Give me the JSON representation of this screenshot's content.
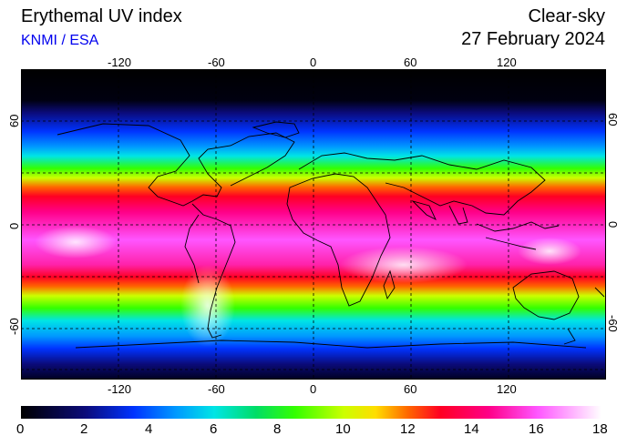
{
  "header": {
    "title": "Erythemal UV index",
    "source": "KNMI / ESA",
    "condition": "Clear-sky",
    "date": "27 February 2024"
  },
  "map": {
    "lon_ticks": [
      "-120",
      "-60",
      "0",
      "60",
      "120"
    ],
    "lat_ticks_left": [
      "60",
      "0",
      "-60"
    ],
    "lat_ticks_right": [
      "60",
      "0",
      "-60"
    ],
    "lon_range": [
      -180,
      180
    ],
    "lat_range": [
      -90,
      90
    ],
    "grid": true,
    "colormap_stops": [
      {
        "value": 0,
        "color": "#000000"
      },
      {
        "value": 2,
        "color": "#0b0b7a"
      },
      {
        "value": 3.5,
        "color": "#0033ff"
      },
      {
        "value": 4.8,
        "color": "#0099ff"
      },
      {
        "value": 6,
        "color": "#00e5e5"
      },
      {
        "value": 7.3,
        "color": "#00dd66"
      },
      {
        "value": 8.5,
        "color": "#33ff00"
      },
      {
        "value": 10,
        "color": "#ccff00"
      },
      {
        "value": 11,
        "color": "#ffdd00"
      },
      {
        "value": 12,
        "color": "#ff6600"
      },
      {
        "value": 13,
        "color": "#ff0022"
      },
      {
        "value": 14.5,
        "color": "#ff0088"
      },
      {
        "value": 16,
        "color": "#ff55ff"
      },
      {
        "value": 18,
        "color": "#ffffff"
      }
    ]
  },
  "colorbar": {
    "labels": [
      "0",
      "2",
      "4",
      "6",
      "8",
      "10",
      "12",
      "14",
      "16",
      "18"
    ],
    "min": 0,
    "max": 18
  }
}
